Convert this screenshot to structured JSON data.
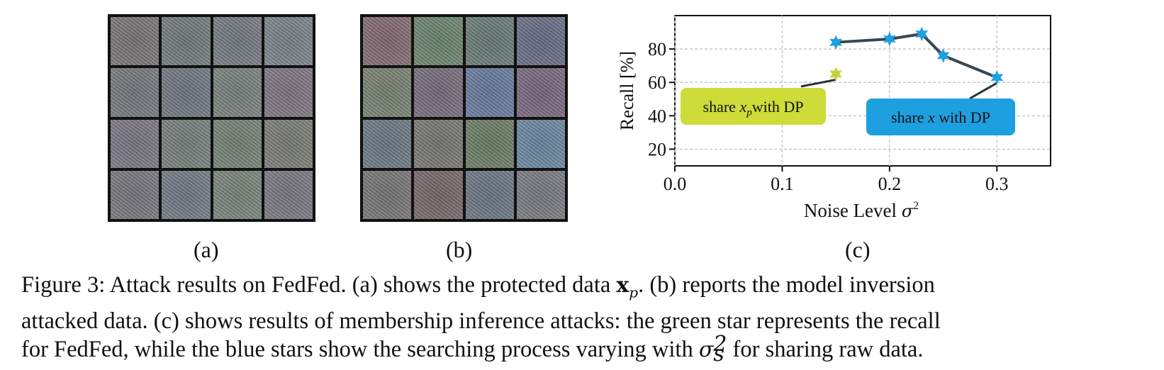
{
  "panels": {
    "a": {
      "label": "(a)"
    },
    "b": {
      "label": "(b)"
    },
    "c": {
      "label": "(c)"
    }
  },
  "tiles_a": [
    "#7d7a78",
    "#76807e",
    "#7b7e86",
    "#7f8a8e",
    "#7a7d80",
    "#757b84",
    "#7e8780",
    "#857a82",
    "#7f7b86",
    "#7b857d",
    "#7a8778",
    "#808279",
    "#7d7b80",
    "#767f88",
    "#808a7d",
    "#7e7d83"
  ],
  "tiles_b": [
    "#8a6d72",
    "#6f8b6d",
    "#6d7f78",
    "#6c7089",
    "#7d8872",
    "#7c6f7e",
    "#6c7fa4",
    "#7e6b7f",
    "#6f7d86",
    "#7d7c74",
    "#6f8263",
    "#6f8ea8",
    "#7c7a76",
    "#7c6a6a",
    "#6f7b85",
    "#7f8083"
  ],
  "chart_data": {
    "type": "scatter",
    "xlabel": "Noise Level σ²",
    "ylabel": "Recall [%]",
    "xlim": [
      0.0,
      0.35
    ],
    "ylim": [
      10,
      100
    ],
    "xticks": [
      "0.0",
      "0.1",
      "0.2",
      "0.3"
    ],
    "xtick_values": [
      0.0,
      0.1,
      0.2,
      0.3
    ],
    "yticks": [
      "20",
      "40",
      "60",
      "80"
    ],
    "ytick_values": [
      20,
      40,
      60,
      80
    ],
    "grid": true,
    "series": [
      {
        "x": [
          0.15
        ],
        "y": [
          65
        ],
        "color": "#c6d43a",
        "marker": "star"
      },
      {
        "x": [
          0.15,
          0.2,
          0.23,
          0.25,
          0.3
        ],
        "y": [
          84,
          86,
          89,
          76,
          63
        ],
        "color": "#1ea0e0",
        "line_color": "#37474f",
        "marker": "star"
      }
    ],
    "annotations": [
      {
        "text_prefix": "share ",
        "text_math": "x",
        "text_sub": "p",
        "text_suffix": "with DP",
        "bg": "#cddc39",
        "point": [
          0.15,
          65
        ]
      },
      {
        "text_prefix": "share ",
        "text_math": "x",
        "text_sub": "",
        "text_suffix": " with DP",
        "bg": "#1e9fe0",
        "point": [
          0.3,
          63
        ]
      }
    ]
  },
  "caption": {
    "line1_a": "Figure 3: Attack results on FedFed. (a) shows the protected data ",
    "line1_x": "x",
    "line1_xsub": "p",
    "line1_b": ". (b) reports the model inversion",
    "line2": "attacked data. (c) shows results of membership inference attacks: the green star represents the recall",
    "line3_a": "for FedFed, while the blue stars show the searching process varying with ",
    "line3_sigma": "σ",
    "line3_sup": "2",
    "line3_sub": "s",
    "line3_b": " for sharing raw data."
  }
}
